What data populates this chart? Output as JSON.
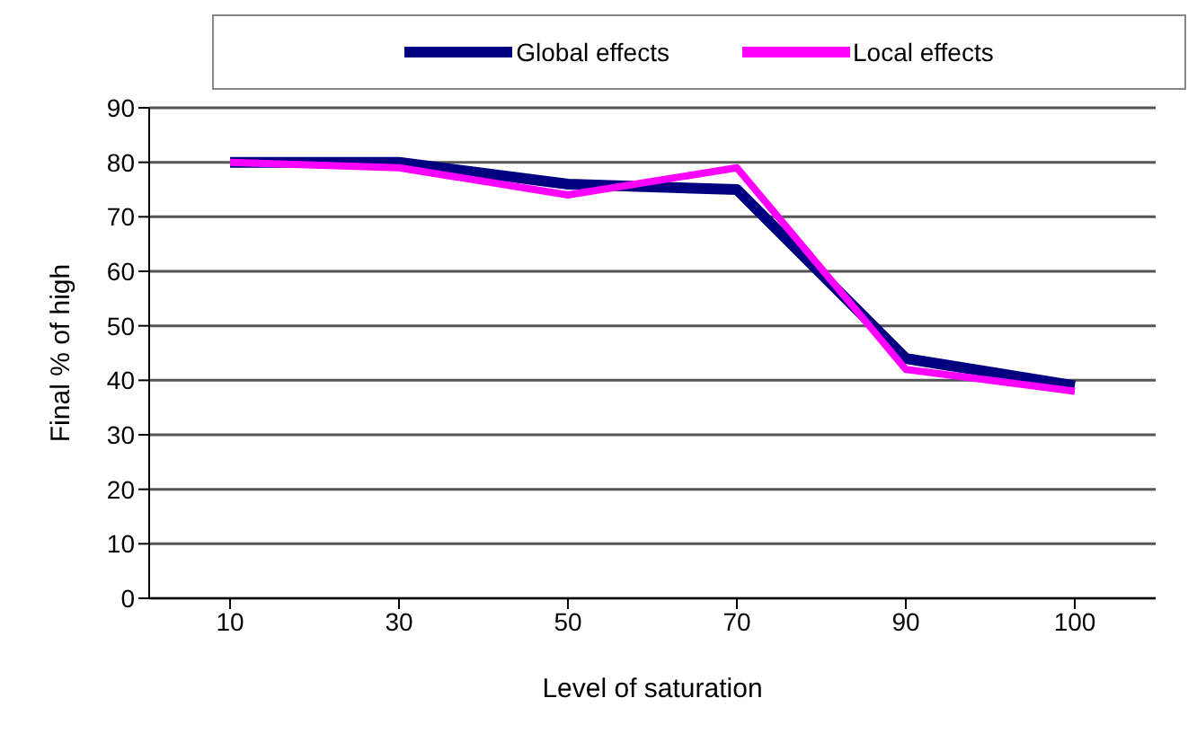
{
  "chart_data": {
    "type": "line",
    "xlabel": "Level of saturation",
    "ylabel": "Final % of high",
    "categories": [
      "10",
      "30",
      "50",
      "70",
      "90",
      "100"
    ],
    "series": [
      {
        "name": "Global effects",
        "color": "#000080",
        "values": [
          80,
          80,
          76,
          75,
          44,
          39
        ]
      },
      {
        "name": "Local effects",
        "color": "#ff00ff",
        "values": [
          80,
          79,
          74,
          79,
          42,
          38
        ]
      }
    ],
    "ylim": [
      0,
      90
    ],
    "yticks": [
      0,
      10,
      20,
      30,
      40,
      50,
      60,
      70,
      80,
      90
    ],
    "grid": "y",
    "legend": "top",
    "marker": "none",
    "line_style": "solid"
  }
}
